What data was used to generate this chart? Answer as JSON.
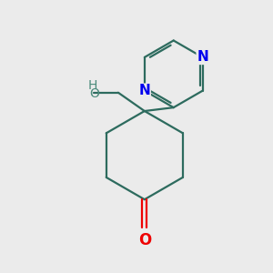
{
  "bg_color": "#ebebeb",
  "bond_color": "#2d6b5e",
  "n_color": "#0000ee",
  "o_color": "#ee0000",
  "ho_color": "#4a8a7a",
  "line_width": 1.6,
  "figsize": [
    3.0,
    3.0
  ],
  "dpi": 100,
  "xlim": [
    0,
    10
  ],
  "ylim": [
    0,
    10
  ]
}
